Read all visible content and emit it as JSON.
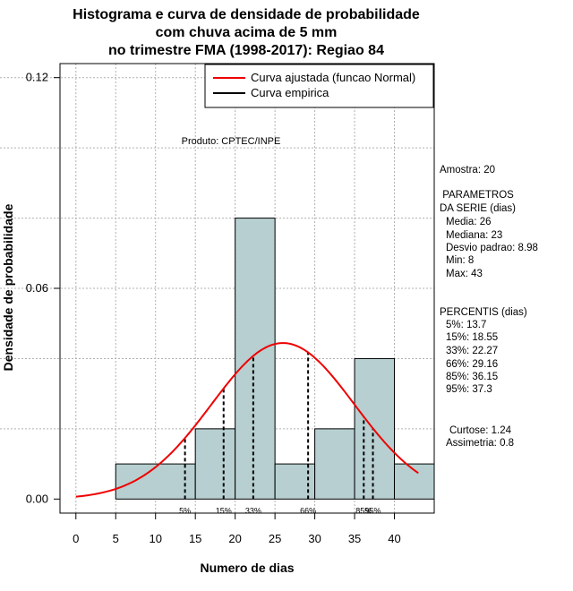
{
  "chart_data": {
    "type": "histogram",
    "title_lines": [
      "Histograma e curva de densidade de probabilidade",
      "com chuva acima de 5 mm",
      "no trimestre FMA (1998-2017): Regiao 84"
    ],
    "xlabel": "Numero de dias",
    "ylabel": "Densidade de probabilidade",
    "xlim": [
      -2,
      45
    ],
    "ylim": [
      -0.004,
      0.124
    ],
    "xticks": [
      "0",
      "5",
      "10",
      "15",
      "20",
      "25",
      "30",
      "35",
      "40"
    ],
    "yticks": [
      "0.00",
      "0.06",
      "0.12"
    ],
    "bins": [
      {
        "from": 5,
        "to": 15,
        "density": 0.01
      },
      {
        "from": 15,
        "to": 20,
        "density": 0.02
      },
      {
        "from": 20,
        "to": 25,
        "density": 0.08
      },
      {
        "from": 25,
        "to": 30,
        "density": 0.01
      },
      {
        "from": 30,
        "to": 35,
        "density": 0.02
      },
      {
        "from": 35,
        "to": 40,
        "density": 0.04
      },
      {
        "from": 40,
        "to": 45,
        "density": 0.01
      }
    ],
    "fitted_curve": {
      "name": "Curva ajustada (funcao Normal)",
      "distribution": "normal",
      "mean": 26,
      "sd": 8.98,
      "x_from": 0,
      "x_to": 43,
      "color": "#ee0000"
    },
    "empirical_curve": {
      "name": "Curva empirica",
      "color": "#000000"
    },
    "percentiles": [
      {
        "label": "5%",
        "value": 13.7
      },
      {
        "label": "15%",
        "value": 18.55
      },
      {
        "label": "33%",
        "value": 22.27
      },
      {
        "label": "66%",
        "value": 29.16
      },
      {
        "label": "85%",
        "value": 36.15
      },
      {
        "label": "95%",
        "value": 37.3
      }
    ],
    "grid": true,
    "legend_position": "top-right",
    "bar_color": "#b7cfd0"
  },
  "product_note": "Produto: CPTEC/INPE",
  "stats": {
    "sample": "Amostra: 20",
    "params_header": [
      " PARAMETROS",
      "DA SERIE (dias)"
    ],
    "params": [
      "Media: 26",
      "Mediana: 23",
      "Desvio padrao: 8.98",
      "Min: 8",
      "Max: 43"
    ],
    "percentiles_header": "PERCENTIS (dias)",
    "percentile_lines": [
      "5%: 13.7",
      "15%: 18.55",
      "33%: 22.27",
      "66%: 29.16",
      "85%: 36.15",
      "95%: 37.3"
    ],
    "curtose": "Curtose: 1.24",
    "assimetria": "Assimetria: 0.8"
  }
}
